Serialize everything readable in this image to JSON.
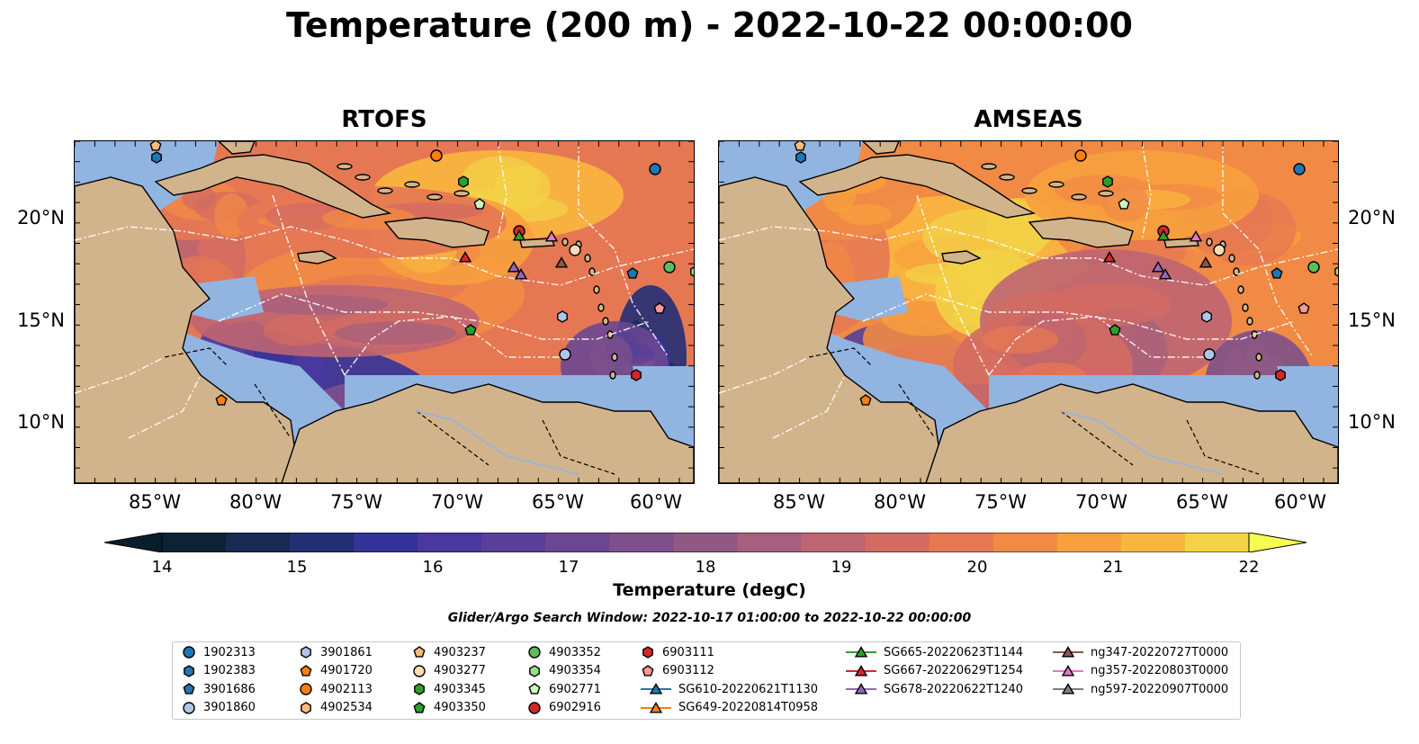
{
  "title": "Temperature (200 m) - 2022-10-22 00:00:00",
  "panels": [
    {
      "title": "RTOFS",
      "variant": "rtofs"
    },
    {
      "title": "AMSEAS",
      "variant": "amseas"
    }
  ],
  "lon_ticks": [
    "85°W",
    "80°W",
    "75°W",
    "70°W",
    "65°W",
    "60°W"
  ],
  "lat_ticks": [
    "20°N",
    "15°N",
    "10°N"
  ],
  "colorbar": {
    "label": "Temperature (degC)",
    "ticks": [
      "14",
      "15",
      "16",
      "17",
      "18",
      "19",
      "20",
      "21",
      "22"
    ],
    "colors": [
      "#0c2335",
      "#162a52",
      "#212f75",
      "#33339a",
      "#49399e",
      "#5a3f98",
      "#6b4792",
      "#7d508b",
      "#8f5984",
      "#a6607d",
      "#be6572",
      "#d36b62",
      "#e57853",
      "#f18a45",
      "#f7a03e",
      "#f9b63f",
      "#f3d247"
    ],
    "extend_low": "#081e2c",
    "extend_high": "#f6ff4e"
  },
  "search_window": "Glider/Argo Search Window: 2022-10-17 01:00:00 to 2022-10-22 00:00:00",
  "map_colors": {
    "land": "#d2b48c",
    "shelf": "#92b4e1"
  },
  "legend": [
    {
      "label": "1902313",
      "marker": "circle",
      "color": "#1f77b4"
    },
    {
      "label": "1902383",
      "marker": "hexagon",
      "color": "#1f77b4"
    },
    {
      "label": "3901686",
      "marker": "pentagon",
      "color": "#1f77b4"
    },
    {
      "label": "3901860",
      "marker": "circle",
      "color": "#aec7e8"
    },
    {
      "label": "3901861",
      "marker": "hexagon",
      "color": "#aec7e8"
    },
    {
      "label": "4901720",
      "marker": "pentagon",
      "color": "#ff7f0e"
    },
    {
      "label": "4902113",
      "marker": "circle",
      "color": "#ff7f0e"
    },
    {
      "label": "4902534",
      "marker": "hexagon",
      "color": "#ffbb78"
    },
    {
      "label": "4903237",
      "marker": "pentagon",
      "color": "#ffbb78"
    },
    {
      "label": "4903277",
      "marker": "circle",
      "color": "#ffdcb4"
    },
    {
      "label": "4903345",
      "marker": "hexagon",
      "color": "#2ca02c"
    },
    {
      "label": "4903350",
      "marker": "pentagon",
      "color": "#2ca02c"
    },
    {
      "label": "4903352",
      "marker": "circle",
      "color": "#5dbd5d"
    },
    {
      "label": "4903354",
      "marker": "hexagon",
      "color": "#98df8a"
    },
    {
      "label": "6902771",
      "marker": "pentagon",
      "color": "#c9f5c0"
    },
    {
      "label": "6902916",
      "marker": "circle",
      "color": "#d62728"
    },
    {
      "label": "6903111",
      "marker": "hexagon",
      "color": "#d62728"
    },
    {
      "label": "6903112",
      "marker": "pentagon",
      "color": "#ff9896"
    },
    {
      "label": "SG610-20220621T1130",
      "marker": "triangle-line",
      "color": "#1f77b4"
    },
    {
      "label": "SG649-20220814T0958",
      "marker": "triangle-line",
      "color": "#ff7f0e"
    },
    {
      "label": "SG665-20220623T1144",
      "marker": "triangle-line",
      "color": "#2ca02c"
    },
    {
      "label": "SG667-20220629T1254",
      "marker": "triangle-line",
      "color": "#d62728"
    },
    {
      "label": "SG678-20220622T1240",
      "marker": "triangle-line",
      "color": "#9467bd"
    },
    {
      "label": "ng347-20220727T0000",
      "marker": "triangle-line",
      "color": "#8c564b"
    },
    {
      "label": "ng357-20220803T0000",
      "marker": "triangle-line",
      "color": "#e377c2"
    },
    {
      "label": "ng597-20220907T0000",
      "marker": "triangle-line",
      "color": "#7f7f7f"
    }
  ]
}
